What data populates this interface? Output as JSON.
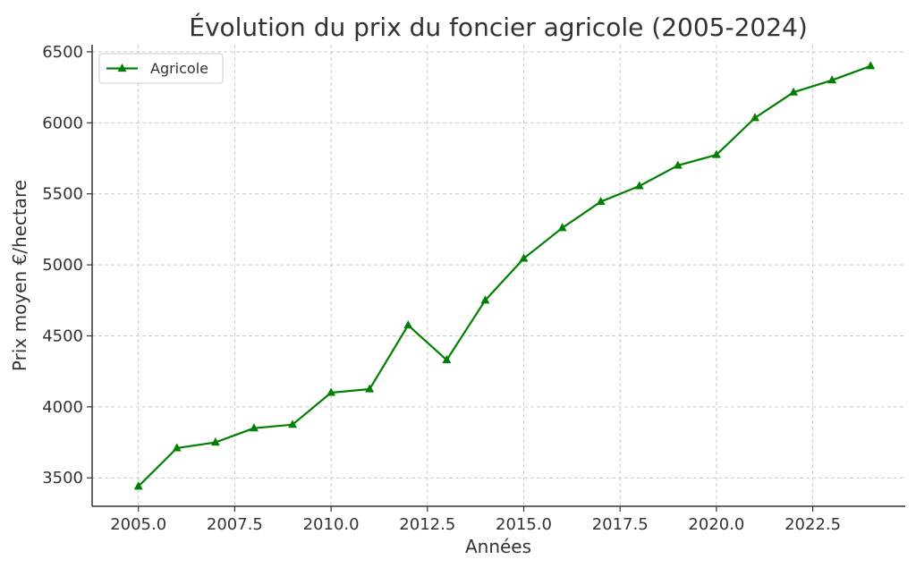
{
  "chart_data": {
    "type": "line",
    "title": "Évolution du prix du foncier agricole (2005-2024)",
    "xlabel": "Années",
    "ylabel": "Prix moyen €/hectare",
    "xlim": [
      2003.8,
      2024.9
    ],
    "ylim": [
      3300,
      6550
    ],
    "x_ticks": [
      2005.0,
      2007.5,
      2010.0,
      2012.5,
      2015.0,
      2017.5,
      2020.0,
      2022.5
    ],
    "x_tick_labels": [
      "2005.0",
      "2007.5",
      "2010.0",
      "2012.5",
      "2015.0",
      "2017.5",
      "2020.0",
      "2022.5"
    ],
    "y_ticks": [
      3500,
      4000,
      4500,
      5000,
      5500,
      6000,
      6500
    ],
    "y_tick_labels": [
      "3500",
      "4000",
      "4500",
      "5000",
      "5500",
      "6000",
      "6500"
    ],
    "grid": true,
    "legend_position": "top-left",
    "series": [
      {
        "name": "Agricole",
        "color": "#008000",
        "marker": "triangle",
        "x": [
          2005,
          2006,
          2007,
          2008,
          2009,
          2010,
          2011,
          2012,
          2013,
          2014,
          2015,
          2016,
          2017,
          2018,
          2019,
          2020,
          2021,
          2022,
          2023,
          2024
        ],
        "y": [
          3440,
          3710,
          3750,
          3850,
          3875,
          4100,
          4125,
          4575,
          4330,
          4750,
          5045,
          5260,
          5445,
          5555,
          5700,
          5775,
          6035,
          6215,
          6300,
          6400
        ]
      }
    ]
  }
}
